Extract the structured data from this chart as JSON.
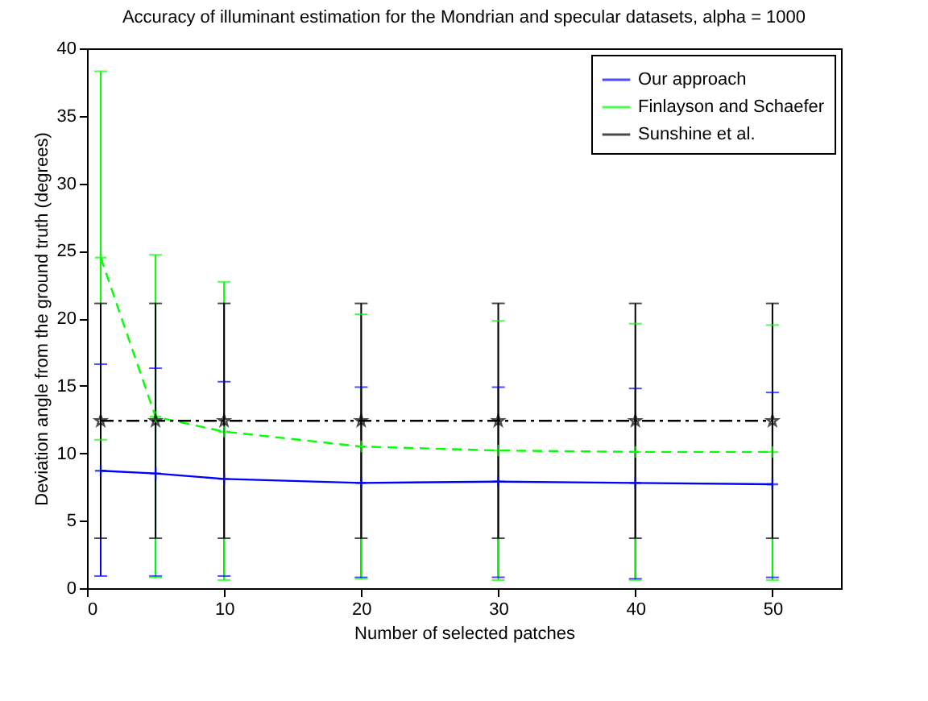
{
  "chart_data": {
    "type": "line",
    "title": "Accuracy of illuminant estimation for the Mondrian and specular datasets, alpha = 1000",
    "xlabel": "Number of selected patches",
    "ylabel": "Deviation angle from the ground truth (degrees)",
    "x": [
      1,
      5,
      10,
      20,
      30,
      40,
      50
    ],
    "series": [
      {
        "name": "Our approach",
        "color": "#0000ff",
        "marker": "cross",
        "line_style": "solid",
        "values": [
          8.7,
          8.5,
          8.1,
          7.8,
          7.9,
          7.8,
          7.7
        ],
        "errors": [
          [
            0.9,
            16.6
          ],
          [
            0.9,
            16.3
          ],
          [
            0.9,
            15.3
          ],
          [
            0.8,
            14.9
          ],
          [
            0.8,
            14.9
          ],
          [
            0.7,
            14.8
          ],
          [
            0.8,
            14.5
          ]
        ]
      },
      {
        "name": "Finlayson and Schaefer",
        "color": "#00ff00",
        "marker": "cross",
        "line_style": "dashed",
        "values": [
          24.5,
          12.7,
          11.6,
          10.5,
          10.2,
          10.1,
          10.1
        ],
        "errors": [
          [
            11.0,
            38.3
          ],
          [
            0.8,
            24.7
          ],
          [
            0.6,
            22.7
          ],
          [
            0.7,
            20.3
          ],
          [
            0.6,
            19.8
          ],
          [
            0.6,
            19.6
          ],
          [
            0.6,
            19.5
          ]
        ]
      },
      {
        "name": "Sunshine et al.",
        "color": "#000000",
        "marker": "star",
        "line_style": "dashdot",
        "values": [
          12.4,
          12.4,
          12.4,
          12.4,
          12.4,
          12.4,
          12.4
        ],
        "errors": [
          [
            3.7,
            21.1
          ],
          [
            3.7,
            21.1
          ],
          [
            3.7,
            21.1
          ],
          [
            3.7,
            21.1
          ],
          [
            3.7,
            21.1
          ],
          [
            3.7,
            21.1
          ],
          [
            3.7,
            21.1
          ]
        ]
      }
    ],
    "xlim": [
      0,
      55
    ],
    "xticks": [
      0,
      10,
      20,
      30,
      40,
      50
    ],
    "ylim": [
      0,
      40
    ],
    "yticks": [
      0,
      5,
      10,
      15,
      20,
      25,
      30,
      35,
      40
    ],
    "legend": "top right",
    "grid": false
  }
}
